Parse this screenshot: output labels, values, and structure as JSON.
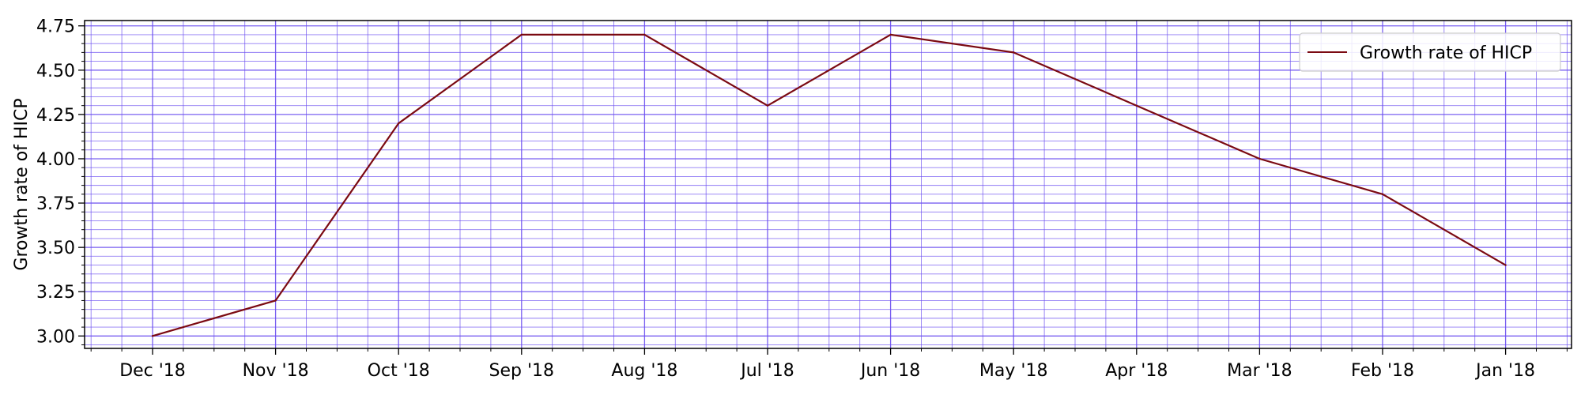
{
  "chart_data": {
    "type": "line",
    "title": "",
    "xlabel": "",
    "ylabel": "Growth rate of HICP",
    "categories": [
      "Dec '18",
      "Nov '18",
      "Oct '18",
      "Sep '18",
      "Aug '18",
      "Jul '18",
      "Jun '18",
      "May '18",
      "Apr '18",
      "Mar '18",
      "Feb '18",
      "Jan '18"
    ],
    "series": [
      {
        "name": "Growth rate of HICP",
        "values": [
          3.0,
          3.2,
          4.2,
          4.7,
          4.7,
          4.3,
          4.7,
          4.6,
          4.3,
          4.0,
          3.8,
          3.4
        ],
        "color": "#7b0a12"
      }
    ],
    "ylim": [
      2.93,
      4.78
    ],
    "yticks": [
      "3.00",
      "3.25",
      "3.50",
      "3.75",
      "4.00",
      "4.25",
      "4.50",
      "4.75"
    ],
    "grid": true,
    "grid_color": "#6b4ff0",
    "legend_position": "top-right"
  }
}
